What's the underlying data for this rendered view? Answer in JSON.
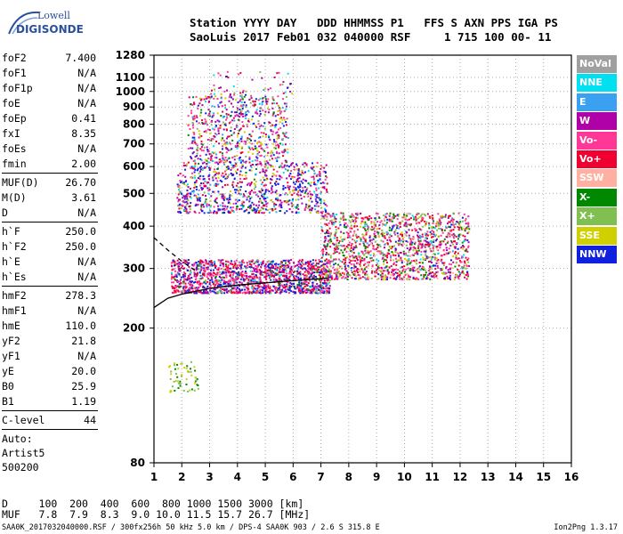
{
  "logo": {
    "line1": "Lowell",
    "line2": "DIGISONDE"
  },
  "header": {
    "labels": "Station YYYY DAY   DDD HHMMSS P1   FFS S AXN PPS IGA PS",
    "values": "SaoLuis 2017 Feb01 032 040000 RSF     1 715 100 00- 11"
  },
  "params": {
    "group1": [
      {
        "name": "foF2",
        "value": "7.400"
      },
      {
        "name": "foF1",
        "value": "N/A"
      },
      {
        "name": "foF1p",
        "value": "N/A"
      },
      {
        "name": "foE",
        "value": "N/A"
      },
      {
        "name": "foEp",
        "value": "0.41"
      },
      {
        "name": "fxI",
        "value": "8.35"
      },
      {
        "name": "foEs",
        "value": "N/A"
      },
      {
        "name": "fmin",
        "value": "2.00"
      }
    ],
    "group2": [
      {
        "name": "MUF(D)",
        "value": "26.70"
      },
      {
        "name": "M(D)",
        "value": "3.61"
      },
      {
        "name": "D",
        "value": "N/A"
      }
    ],
    "group3": [
      {
        "name": "h`F",
        "value": "250.0"
      },
      {
        "name": "h`F2",
        "value": "250.0"
      },
      {
        "name": "h`E",
        "value": "N/A"
      },
      {
        "name": "h`Es",
        "value": "N/A"
      }
    ],
    "group4": [
      {
        "name": "hmF2",
        "value": "278.3"
      },
      {
        "name": "hmF1",
        "value": "N/A"
      },
      {
        "name": "hmE",
        "value": "110.0"
      },
      {
        "name": "yF2",
        "value": "21.8"
      },
      {
        "name": "yF1",
        "value": "N/A"
      },
      {
        "name": "yE",
        "value": "20.0"
      },
      {
        "name": "B0",
        "value": "25.9"
      },
      {
        "name": "B1",
        "value": "1.19"
      }
    ],
    "clevel": {
      "name": "C-level",
      "value": "44"
    },
    "auto": [
      "Auto:",
      "Artist5",
      "500200"
    ]
  },
  "legend": [
    {
      "label": "NoVal",
      "color": "#a0a0a0"
    },
    {
      "label": "NNE",
      "color": "#00e0f0"
    },
    {
      "label": "E",
      "color": "#3aa0f0"
    },
    {
      "label": "W",
      "color": "#b000a8"
    },
    {
      "label": "Vo-",
      "color": "#ff3898"
    },
    {
      "label": "Vo+",
      "color": "#f00030"
    },
    {
      "label": "SSW",
      "color": "#ffb0a0"
    },
    {
      "label": "X-",
      "color": "#008800"
    },
    {
      "label": "X+",
      "color": "#80c050"
    },
    {
      "label": "SSE",
      "color": "#d0d000"
    },
    {
      "label": "NNW",
      "color": "#1020e0"
    }
  ],
  "distance_table": {
    "line1": "D     100  200  400  600  800 1000 1500 3000 [km]",
    "line2": "MUF   7.8  7.9  8.3  9.0 10.0 11.5 15.7 26.7 [MHz]"
  },
  "footer": {
    "text": "SAA0K_2017032040000.RSF / 300fx256h 50 kHz 5.0 km / DPS-4 SAA0K 903 / 2.6 S 315.8 E",
    "version": "Ion2Png 1.3.17"
  },
  "chart_data": {
    "type": "scatter",
    "title": "",
    "xlabel": "",
    "ylabel": "",
    "xlim": [
      1,
      16
    ],
    "ylim": [
      80,
      1280
    ],
    "xticks": [
      1,
      2,
      3,
      4,
      5,
      6,
      7,
      8,
      9,
      10,
      11,
      12,
      13,
      14,
      15,
      16
    ],
    "yticks": [
      80,
      200,
      300,
      400,
      500,
      600,
      700,
      800,
      900,
      1000,
      1100,
      1280
    ],
    "y_scale": "log",
    "grid": true,
    "clusters": [
      {
        "name": "F2 1st hop",
        "x": [
          1.6,
          7.3
        ],
        "y": [
          255,
          320
        ]
      },
      {
        "name": "F2 spread",
        "x": [
          7.0,
          12.3
        ],
        "y": [
          280,
          440
        ]
      },
      {
        "name": "F2 2nd hop",
        "x": [
          1.8,
          7.2
        ],
        "y": [
          440,
          620
        ]
      },
      {
        "name": "F2 3rd hop",
        "x": [
          2.2,
          5.8
        ],
        "y": [
          620,
          980
        ]
      },
      {
        "name": "high echoes",
        "x": [
          3.0,
          6.0
        ],
        "y": [
          980,
          1160
        ]
      },
      {
        "name": "low echoes",
        "x": [
          1.5,
          2.6
        ],
        "y": [
          130,
          160
        ]
      }
    ],
    "profile_lines": [
      {
        "name": "virtual height trace",
        "x": [
          1.0,
          1.5,
          2.0,
          3.0,
          4.0,
          5.0,
          6.0,
          7.0,
          7.3
        ],
        "y": [
          230,
          245,
          252,
          262,
          268,
          272,
          276,
          280,
          282
        ]
      },
      {
        "name": "dashed profile",
        "x": [
          1.0,
          1.5,
          2.0,
          2.5
        ],
        "y": [
          370,
          340,
          315,
          295
        ]
      }
    ]
  }
}
